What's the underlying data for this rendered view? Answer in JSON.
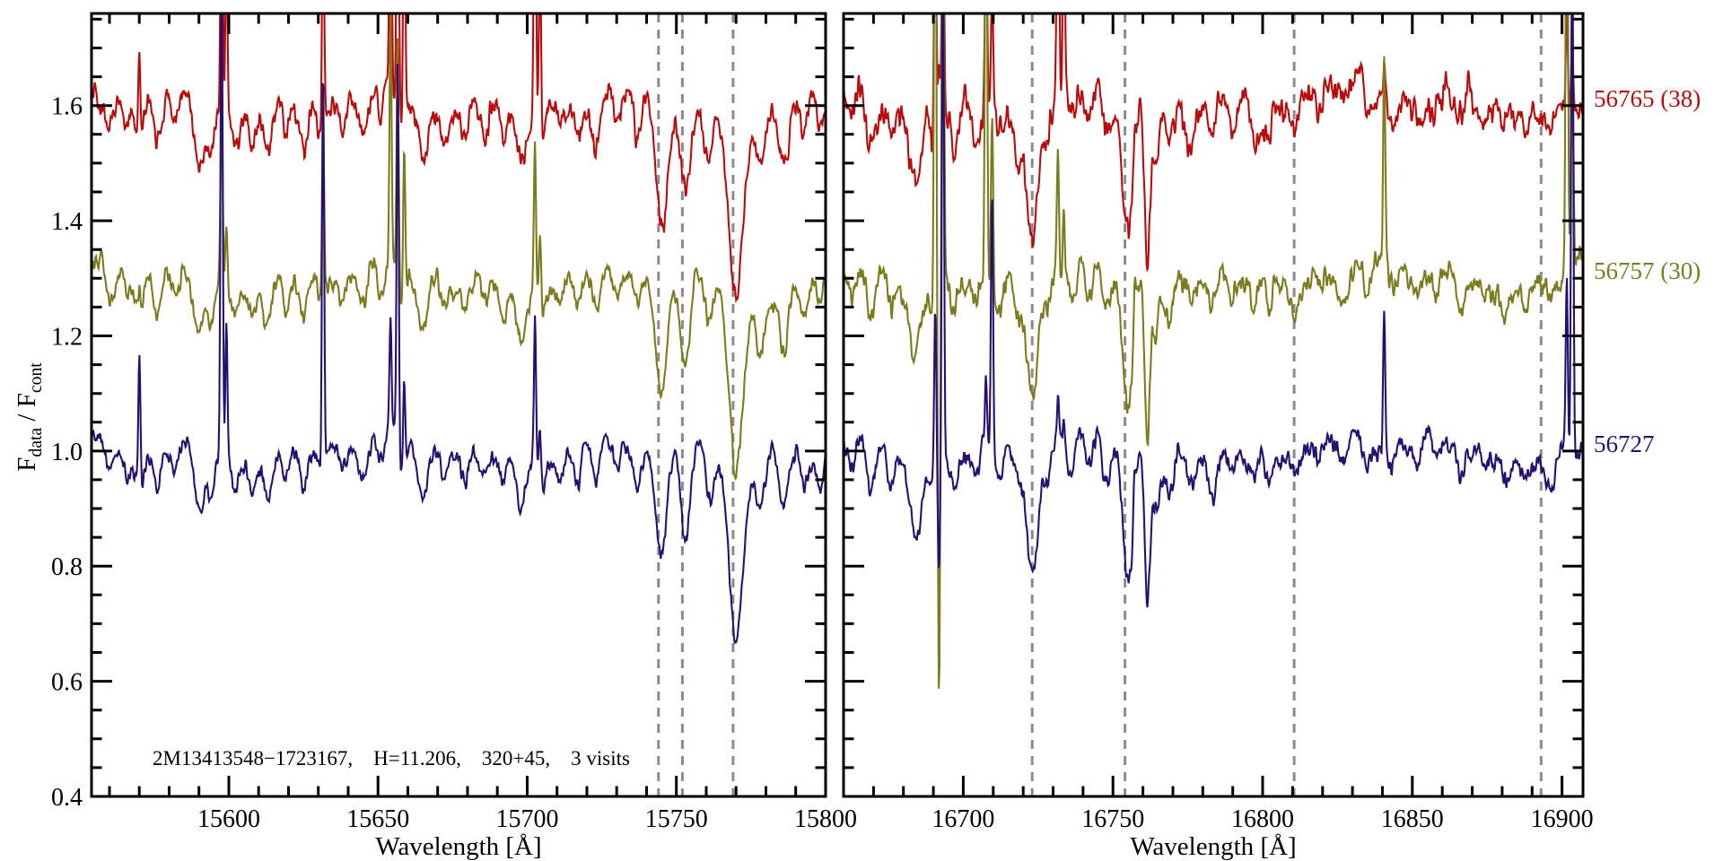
{
  "figure": {
    "xlabel": "Wavelength [Å]",
    "ylabel_parts": {
      "f1": "F",
      "sub1": "data",
      "mid": " / F",
      "sub2": "cont"
    },
    "annotation": "2M13413548−1723167,    H=11.206,    320+45,    3 visits",
    "background": "#ffffff",
    "axis_color": "#000000",
    "dashed_line_color": "#8c8c8c"
  },
  "chart_data": {
    "type": "line",
    "title": "",
    "xlabel": "Wavelength [Å]",
    "ylabel": "F_data / F_cont",
    "grid": false,
    "legend_position": "right-outside",
    "ylim": [
      0.4,
      1.76
    ],
    "yticks_major": [
      0.4,
      0.6,
      0.8,
      1.0,
      1.2,
      1.4,
      1.6
    ],
    "ytick_minor_step": 0.05,
    "annotation": "2M13413548−1723167,    H=11.206,    320+45,    3 visits",
    "series": [
      {
        "name": "56765",
        "label": "56765 (38)",
        "color": "#b90d0d",
        "offset": 1.6,
        "noise": 0.024,
        "seed": 11
      },
      {
        "name": "56757",
        "label": "56757 (30)",
        "color": "#7c7c1e",
        "offset": 1.3,
        "noise": 0.02,
        "seed": 22
      },
      {
        "name": "56727",
        "label": "56727",
        "color": "#261173",
        "offset": 1.0,
        "noise": 0.017,
        "seed": 33
      }
    ],
    "panels": [
      {
        "xlim": [
          15554,
          15800
        ],
        "xticks_major": [
          15600,
          15650,
          15700,
          15750,
          15800
        ],
        "xtick_minor_step": 10,
        "dashed_lines": [
          15744,
          15752,
          15769
        ],
        "noise_scale": 1.0,
        "continuum_waves": [
          [
            0.016,
            85,
            0.8
          ],
          [
            0.011,
            34,
            2.1
          ]
        ],
        "absorption_lines": [
          [
            15560,
            0.05,
            1.2
          ],
          [
            15566,
            0.04,
            1.0
          ],
          [
            15570,
            0.07,
            1.3
          ],
          [
            15576,
            0.08,
            1.2
          ],
          [
            15582,
            0.04,
            1.0
          ],
          [
            15590,
            0.11,
            1.6
          ],
          [
            15594,
            0.07,
            1.1
          ],
          [
            15602,
            0.04,
            1.0
          ],
          [
            15608,
            0.05,
            1.2
          ],
          [
            15613,
            0.08,
            1.4
          ],
          [
            15619,
            0.05,
            1.0
          ],
          [
            15625,
            0.07,
            1.3
          ],
          [
            15631,
            0.05,
            1.0
          ],
          [
            15638,
            0.04,
            1.0
          ],
          [
            15645,
            0.07,
            1.4
          ],
          [
            15651,
            0.05,
            1.0
          ],
          [
            15658,
            0.06,
            1.2
          ],
          [
            15665,
            0.09,
            1.5
          ],
          [
            15672,
            0.05,
            1.0
          ],
          [
            15679,
            0.04,
            1.0
          ],
          [
            15686,
            0.05,
            1.2
          ],
          [
            15692,
            0.05,
            1.0
          ],
          [
            15698,
            0.08,
            1.5
          ],
          [
            15705,
            0.05,
            1.0
          ],
          [
            15711,
            0.04,
            1.0
          ],
          [
            15717,
            0.06,
            1.2
          ],
          [
            15723,
            0.08,
            1.4
          ],
          [
            15730,
            0.05,
            1.0
          ],
          [
            15737,
            0.06,
            1.2
          ],
          [
            15745,
            0.2,
            1.9
          ],
          [
            15753,
            0.16,
            1.6
          ],
          [
            15761,
            0.08,
            1.3
          ],
          [
            15770,
            0.3,
            2.3
          ],
          [
            15778,
            0.09,
            1.4
          ],
          [
            15786,
            0.11,
            1.6
          ],
          [
            15793,
            0.06,
            1.2
          ],
          [
            15798,
            0.05,
            1.0
          ]
        ],
        "emission_spikes": [
          {
            "wl": 15570.0,
            "h": {
              "56727": 0.25,
              "56757": 0.06,
              "56765": 0.15
            }
          },
          {
            "wl": 15597.6,
            "h": {
              "56727": 0.9,
              "56757": 0.32,
              "56765": 0.55
            }
          },
          {
            "wl": 15599.2,
            "h": {
              "56727": 0.25,
              "56757": 0.12,
              "56765": 0.3
            }
          },
          {
            "wl": 15631.6,
            "h": {
              "56727": 0.7,
              "56757": 0.33,
              "56765": 0.45
            }
          },
          {
            "wl": 15654.2,
            "h": {
              "56727": 0.2,
              "56757": 0.45,
              "56765": 0.55
            }
          },
          {
            "wl": 15656.6,
            "h": {
              "56727": 0.68,
              "56757": 0.42,
              "56765": 0.75
            }
          },
          {
            "wl": 15658.8,
            "h": {
              "56727": 0.15,
              "56757": 0.25,
              "56765": 0.45
            }
          },
          {
            "wl": 15702.6,
            "h": {
              "56727": 0.25,
              "56757": 0.27,
              "56765": 0.6
            }
          },
          {
            "wl": 15704.3,
            "h": {
              "56727": 0.1,
              "56757": 0.12,
              "56765": 0.3
            }
          }
        ]
      },
      {
        "xlim": [
          16660,
          16907
        ],
        "xticks_major": [
          16700,
          16750,
          16800,
          16850,
          16900
        ],
        "xtick_minor_step": 10,
        "dashed_lines": [
          16723,
          16754,
          16810.5,
          16893
        ],
        "noise_scale": 1.3,
        "continuum_waves": [
          [
            0.014,
            95,
            2.6
          ],
          [
            0.009,
            40,
            0.7
          ]
        ],
        "absorption_lines": [
          [
            16663,
            0.05,
            1.2
          ],
          [
            16669,
            0.07,
            1.4
          ],
          [
            16676,
            0.05,
            1.1
          ],
          [
            16684,
            0.13,
            1.8
          ],
          [
            16690,
            0.06,
            1.0
          ],
          [
            16697,
            0.05,
            1.2
          ],
          [
            16704,
            0.05,
            1.2
          ],
          [
            16712,
            0.06,
            1.3
          ],
          [
            16718,
            0.06,
            1.2
          ],
          [
            16723,
            0.22,
            2.0
          ],
          [
            16728,
            0.06,
            1.0
          ],
          [
            16736,
            0.05,
            1.2
          ],
          [
            16742,
            0.05,
            1.0
          ],
          [
            16748,
            0.07,
            1.3
          ],
          [
            16755,
            0.25,
            1.8
          ],
          [
            16761.5,
            0.27,
            0.9
          ],
          [
            16764.5,
            0.1,
            1.2
          ],
          [
            16769,
            0.08,
            1.3
          ],
          [
            16776,
            0.05,
            1.1
          ],
          [
            16783,
            0.05,
            1.2
          ],
          [
            16790,
            0.04,
            1.0
          ],
          [
            16797,
            0.04,
            1.1
          ],
          [
            16802,
            0.05,
            0.9
          ],
          [
            16811,
            0.04,
            1.2
          ],
          [
            16819,
            0.03,
            1.0
          ],
          [
            16827,
            0.04,
            1.2
          ],
          [
            16835,
            0.03,
            1.0
          ],
          [
            16843,
            0.03,
            1.0
          ],
          [
            16851,
            0.04,
            1.2
          ],
          [
            16858,
            0.03,
            1.0
          ],
          [
            16866,
            0.04,
            1.2
          ],
          [
            16874,
            0.03,
            1.0
          ],
          [
            16881,
            0.04,
            1.2
          ],
          [
            16888,
            0.03,
            1.0
          ],
          [
            16896,
            0.04,
            1.2
          ]
        ],
        "emission_spikes": [
          {
            "wl": 16690.6,
            "h": {
              "56727": 0.3,
              "56757": 0.95,
              "56765": 0.5
            }
          },
          {
            "wl": 16691.9,
            "h": {
              "56727": -0.18,
              "56757": -0.7,
              "56765": 0.1
            }
          },
          {
            "wl": 16693.2,
            "h": {
              "56727": 0.9,
              "56757": 0.85,
              "56765": 0.55
            }
          },
          {
            "wl": 16707.6,
            "h": {
              "56727": 0.12,
              "56757": 0.85,
              "56765": 0.38
            }
          },
          {
            "wl": 16709.6,
            "h": {
              "56727": 0.46,
              "56757": 0.3,
              "56765": 0.2
            }
          },
          {
            "wl": 16731.6,
            "h": {
              "56727": 0.06,
              "56757": 0.21,
              "56765": 0.62
            }
          },
          {
            "wl": 16733.6,
            "h": {
              "56727": 0.04,
              "56757": 0.12,
              "56765": 0.4
            }
          },
          {
            "wl": 16757.2,
            "h": {
              "56727": 0.07,
              "56757": 0.1,
              "56765": 0.05
            }
          },
          {
            "wl": 16840.6,
            "h": {
              "56727": 0.26,
              "56757": 0.36,
              "56765": 0.06
            }
          },
          {
            "wl": 16901.6,
            "h": {
              "56727": 0.3,
              "56757": 0.95,
              "56765": 0.16
            }
          },
          {
            "wl": 16903.4,
            "h": {
              "56727": 0.95,
              "56757": 0.45,
              "56765": 0.12
            }
          }
        ]
      }
    ]
  }
}
